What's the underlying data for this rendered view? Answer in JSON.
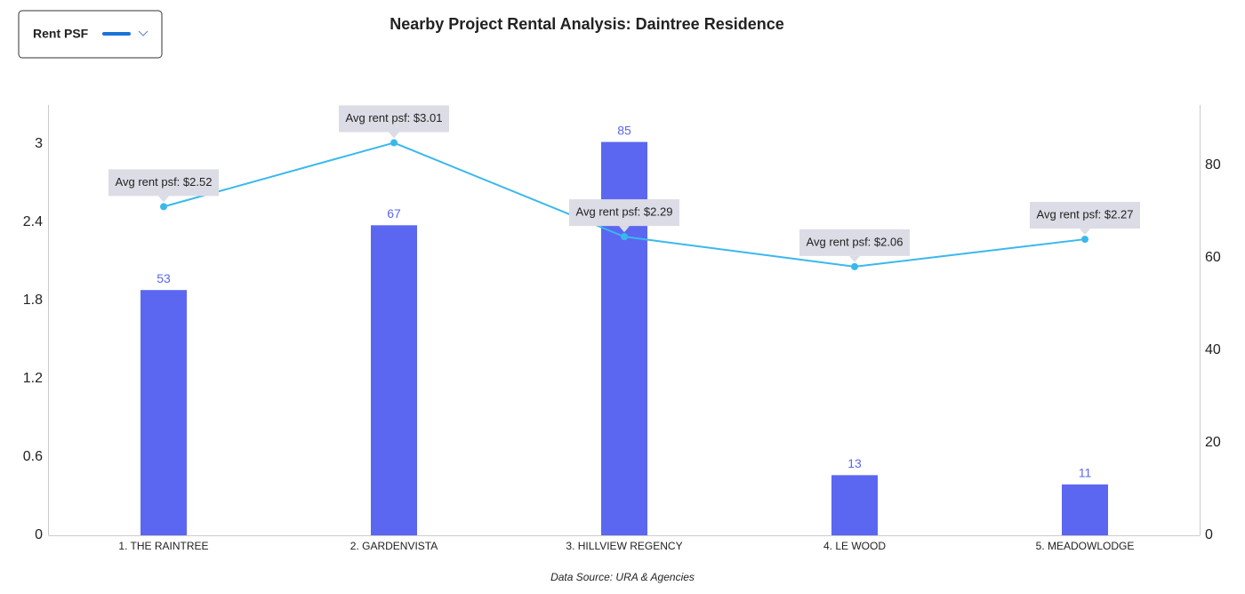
{
  "chart_data": {
    "type": "bar-line",
    "title": "Nearby Project Rental Analysis: Daintree Residence",
    "source": "Data Source: URA & Agencies",
    "categories": [
      "1. THE RAINTREE",
      "2. GARDENVISTA",
      "3. HILLVIEW REGENCY",
      "4. LE WOOD",
      "5. MEADOWLODGE"
    ],
    "series": [
      {
        "type": "bar",
        "axis": "y2",
        "color": "#5b67f0",
        "values": [
          53,
          67,
          85,
          13,
          11
        ]
      },
      {
        "type": "line",
        "name": "Rent PSF",
        "color": "#3ab8ec",
        "values": [
          2.52,
          3.01,
          2.29,
          2.06,
          2.27
        ],
        "value_labels": [
          "Avg rent psf: $2.52",
          "Avg rent psf: $3.01",
          "Avg rent psf: $2.29",
          "Avg rent psf: $2.06",
          "Avg rent psf: $2.27"
        ]
      }
    ],
    "ylim": [
      0,
      3.3
    ],
    "yticks": [
      0,
      0.6,
      1.2,
      1.8,
      2.4,
      3
    ],
    "y2lim": [
      0,
      93
    ],
    "y2ticks": [
      0,
      20,
      40,
      60,
      80
    ]
  }
}
